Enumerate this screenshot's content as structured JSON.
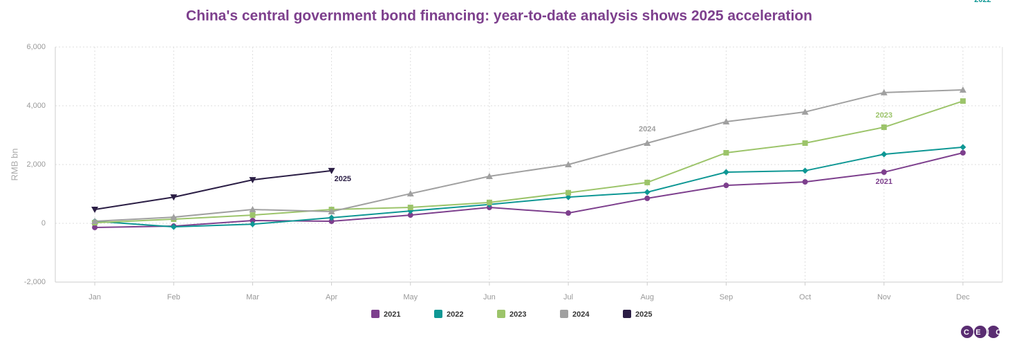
{
  "chart_data": {
    "type": "line",
    "title": "China's central government bond financing: year-to-date analysis shows 2025 acceleration",
    "y_label": "RMB bn",
    "categories": [
      "Jan",
      "Feb",
      "Mar",
      "Apr",
      "May",
      "Jun",
      "Jul",
      "Aug",
      "Sep",
      "Oct",
      "Nov",
      "Dec"
    ],
    "ylim": [
      -2000,
      6000
    ],
    "yticks": [
      {
        "value": -2000,
        "label": "-2,000"
      },
      0,
      {
        "value": 2000,
        "label": "2,000"
      },
      {
        "value": 4000,
        "label": "4,000"
      },
      {
        "value": 6000,
        "label": "6,000"
      }
    ],
    "grid": true,
    "series": [
      {
        "name": "2021",
        "color": "#7d3f8d",
        "marker": "circle",
        "values": [
          -140,
          -95,
          95,
          70,
          280,
          540,
          350,
          850,
          1290,
          1410,
          1740,
          2400
        ]
      },
      {
        "name": "2022",
        "color": "#0e9794",
        "marker": "diamond",
        "values": [
          70,
          -120,
          -30,
          190,
          420,
          640,
          890,
          1060,
          1740,
          1790,
          2350,
          2590
        ]
      },
      {
        "name": "2023",
        "color": "#9cc46a",
        "marker": "square",
        "values": [
          20,
          140,
          280,
          470,
          540,
          710,
          1040,
          1390,
          2400,
          2730,
          3270,
          4160
        ]
      },
      {
        "name": "2024",
        "color": "#a0a0a0",
        "marker": "triangle-up",
        "values": [
          70,
          210,
          470,
          400,
          1010,
          1600,
          2000,
          2730,
          3460,
          3790,
          4450,
          4540
        ]
      },
      {
        "name": "2025",
        "color": "#2b1e45",
        "marker": "triangle-down",
        "values": [
          470,
          890,
          1480,
          1790,
          null,
          null,
          null,
          null,
          null,
          null,
          null,
          null
        ]
      }
    ],
    "logo": "CEIC"
  }
}
